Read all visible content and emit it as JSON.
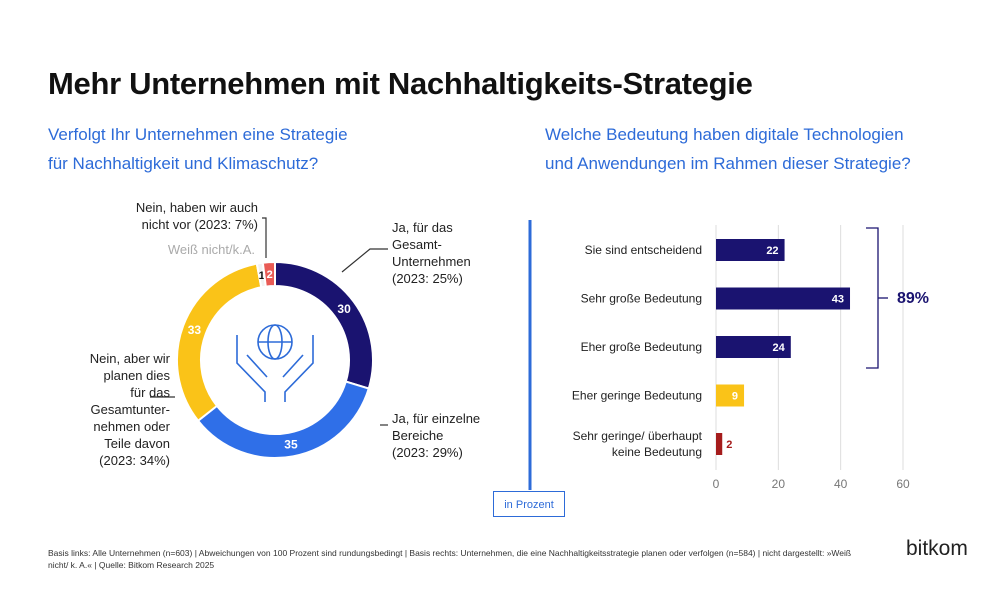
{
  "title": "Mehr Unternehmen mit Nachhaltigkeits-Strategie",
  "left_question": [
    "Verfolgt Ihr Unternehmen eine Strategie",
    "für Nachhaltigkeit und Klimaschutz?"
  ],
  "right_question": [
    "Welche Bedeutung haben digitale Technologien",
    "und Anwendungen im Rahmen dieser Strategie?"
  ],
  "unit_note": "in Prozent",
  "bracket_total": "89%",
  "footnote": "Basis links: Alle Unternehmen (n=603) | Abweichungen von 100 Prozent sind rundungsbedingt | Basis rechts: Unternehmen, die eine Nachhaltigkeitsstrategie planen oder verfolgen (n=584) | nicht dargestellt: »Weiß nicht/ k. A.« | Quelle: Bitkom Research 2025",
  "logo": "bitkom",
  "center_icon": "hands-holding-globe-icon",
  "chart_data": [
    {
      "type": "pie",
      "variant": "donut",
      "slices": [
        {
          "label": "Ja, für das Gesamt-Unternehmen (2023: 25%)",
          "value": 30,
          "color": "#1a1370"
        },
        {
          "label": "Ja, für einzelne Bereiche (2023: 29%)",
          "value": 35,
          "color": "#2f6fe8"
        },
        {
          "label": "Nein, aber wir planen dies für das Gesamtunternehmen oder Teile davon (2023: 34%)",
          "value": 33,
          "color": "#fac318"
        },
        {
          "label": "Weiß nicht/k.A.",
          "value": 1,
          "color": "#f2f2f2"
        },
        {
          "label": "Nein, haben wir auch nicht vor (2023: 7%)",
          "value": 2,
          "color": "#e95b55"
        }
      ],
      "labels_text": {
        "gesamt": [
          "Ja, für das",
          "Gesamt-",
          "Unternehmen",
          "(2023: 25%)"
        ],
        "einzelne": [
          "Ja, für einzelne",
          "Bereiche",
          "(2023: 29%)"
        ],
        "planen": [
          "Nein, aber wir",
          "planen dies",
          "für das",
          "Gesamtunter-",
          "nehmen oder",
          "Teile davon",
          "(2023: 34%)"
        ],
        "weiss": [
          "Weiß nicht/k.A."
        ],
        "nein": [
          "Nein, haben wir auch",
          "nicht vor (2023: 7%)"
        ]
      }
    },
    {
      "type": "bar",
      "orientation": "horizontal",
      "categories": [
        "Sie sind entscheidend",
        "Sehr große Bedeutung",
        "Eher große Bedeutung",
        "Eher geringe Bedeutung",
        "Sehr geringe/ überhaupt keine Bedeutung"
      ],
      "values": [
        22,
        43,
        24,
        9,
        2
      ],
      "colors": [
        "#1a1370",
        "#1a1370",
        "#1a1370",
        "#fac318",
        "#a51c1c"
      ],
      "xlim": [
        0,
        60
      ],
      "xticks": [
        0,
        20,
        40,
        60
      ],
      "grid": true
    }
  ]
}
